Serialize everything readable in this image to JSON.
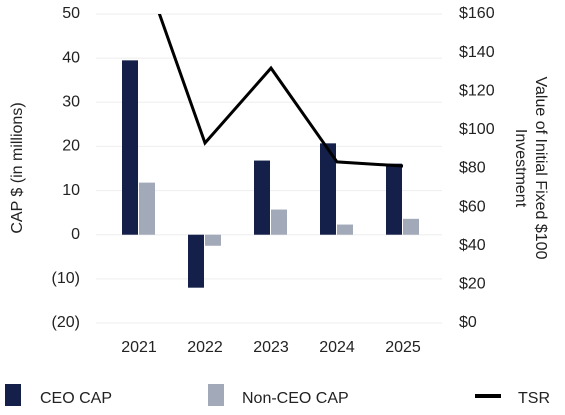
{
  "chart_data": {
    "type": "bar",
    "categories": [
      "2021",
      "2022",
      "2023",
      "2024",
      "2025"
    ],
    "series": [
      {
        "name": "CEO CAP",
        "color": "#14204a",
        "values": [
          39.5,
          -12,
          16.8,
          20.7,
          16.1
        ]
      },
      {
        "name": "Non-CEO CAP",
        "color": "#a2a9b9",
        "values": [
          11.8,
          -2.5,
          5.7,
          2.3,
          3.6
        ]
      },
      {
        "name": "TSR",
        "type": "line",
        "axis": "y2",
        "color": "#000000",
        "values": [
          190,
          93.2,
          132,
          83.4,
          81.3
        ]
      }
    ],
    "ylabel": "CAP $ (in millions)",
    "y2label": [
      "Value of Initial Fixed $100",
      "Investment"
    ],
    "ylim": [
      -20,
      50
    ],
    "yticks": [
      50,
      40,
      30,
      20,
      10,
      0,
      {
        "value": -10,
        "label": "(10)"
      },
      {
        "value": -20,
        "label": "(20)"
      }
    ],
    "y2lim": [
      0,
      160
    ],
    "y2ticks": [
      {
        "value": 160,
        "label": "$160"
      },
      {
        "value": 140,
        "label": "$140"
      },
      {
        "value": 120,
        "label": "$120"
      },
      {
        "value": 100,
        "label": "$100"
      },
      {
        "value": 80,
        "label": "$80"
      },
      {
        "value": 60,
        "label": "$60"
      },
      {
        "value": 40,
        "label": "$40"
      },
      {
        "value": 20,
        "label": "$20"
      },
      {
        "value": 0,
        "label": "$0"
      }
    ],
    "grid": true,
    "legend": "bottom"
  }
}
